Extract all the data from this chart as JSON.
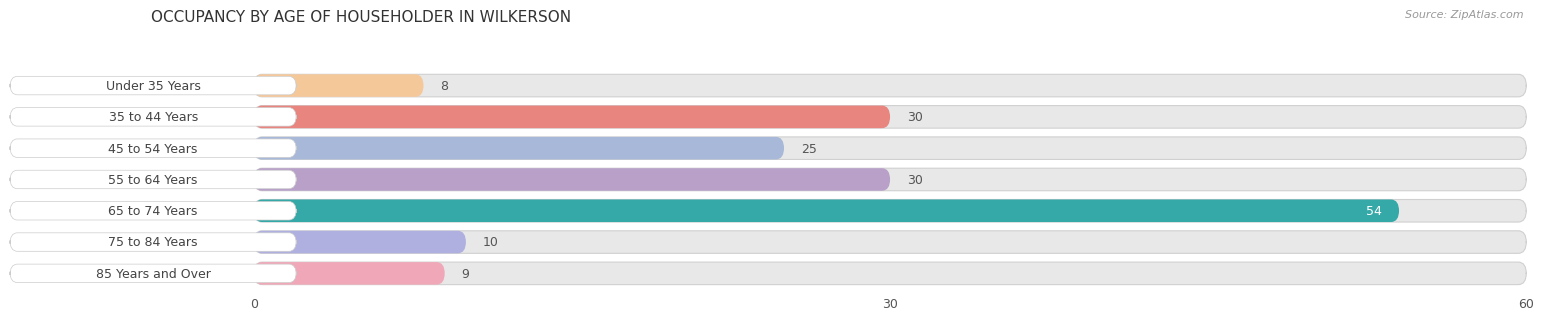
{
  "title": "OCCUPANCY BY AGE OF HOUSEHOLDER IN WILKERSON",
  "source": "Source: ZipAtlas.com",
  "categories": [
    "Under 35 Years",
    "35 to 44 Years",
    "45 to 54 Years",
    "55 to 64 Years",
    "65 to 74 Years",
    "75 to 84 Years",
    "85 Years and Over"
  ],
  "values": [
    8,
    30,
    25,
    30,
    54,
    10,
    9
  ],
  "bar_colors": [
    "#f5c89a",
    "#e8857f",
    "#a8b8d8",
    "#b8a0c8",
    "#35a8a8",
    "#b0b0e0",
    "#f0a8b8"
  ],
  "label_pill_color": "#ffffff",
  "bar_bg_color": "#e8e8e8",
  "bar_bg_border_color": "#d0d0d0",
  "xlim": [
    -12,
    60
  ],
  "data_xlim": [
    0,
    60
  ],
  "xticks": [
    0,
    30,
    60
  ],
  "title_fontsize": 11,
  "label_fontsize": 9,
  "value_fontsize": 9,
  "bar_height": 0.72,
  "fig_bg_color": "#ffffff",
  "value_color_inside": "#ffffff",
  "value_color_outside": "#555555",
  "label_text_color": "#444444"
}
